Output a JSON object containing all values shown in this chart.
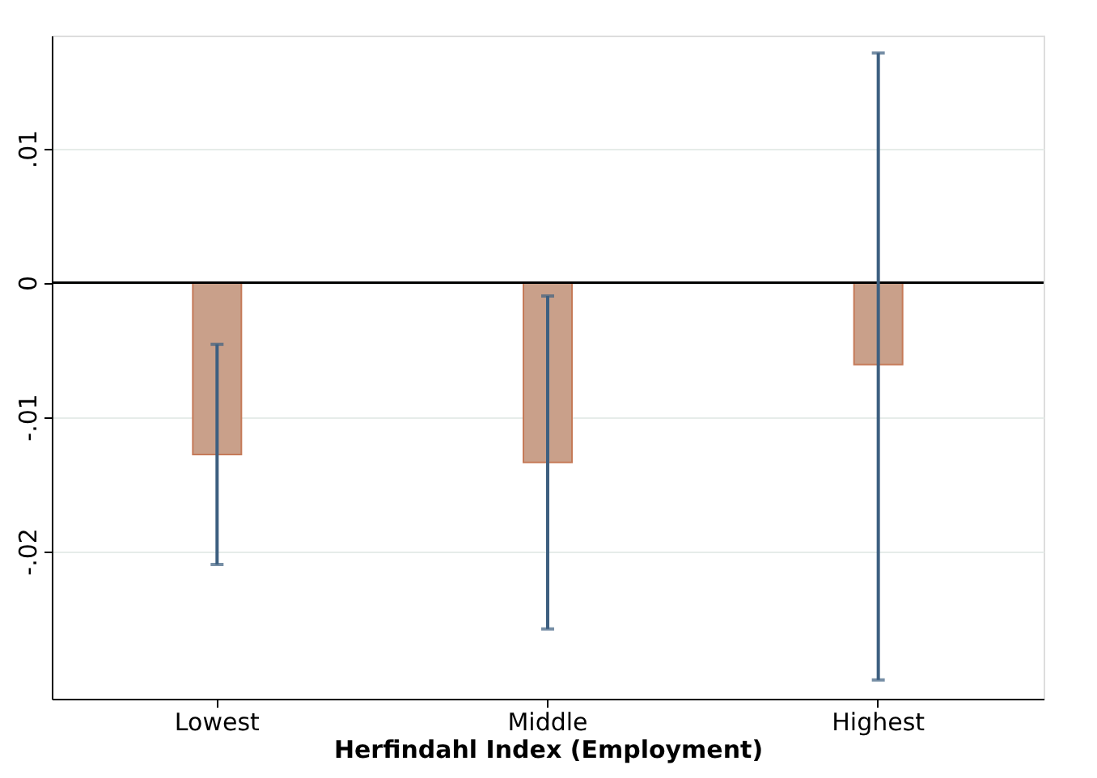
{
  "chart_data": {
    "type": "bar",
    "xlabel": "Herfindahl Index (Employment)",
    "categories": [
      "Lowest",
      "Middle",
      "Highest"
    ],
    "values": [
      -0.0128,
      -0.0134,
      -0.0061
    ],
    "color": "#c9a08a",
    "errors": [
      [
        -0.021,
        -0.0046
      ],
      [
        -0.0258,
        -0.001
      ],
      [
        -0.0296,
        0.0171
      ]
    ],
    "ylim": [
      -0.031,
      0.0184
    ],
    "yticks": [
      {
        "value": -0.02,
        "label": "-.02"
      },
      {
        "value": -0.01,
        "label": "-.01"
      },
      0,
      {
        "value": 0.01,
        "label": ".01"
      }
    ],
    "grid": "y",
    "ref_lines": [
      {
        "axis": "y",
        "value": 0,
        "color": "#000000"
      }
    ]
  }
}
